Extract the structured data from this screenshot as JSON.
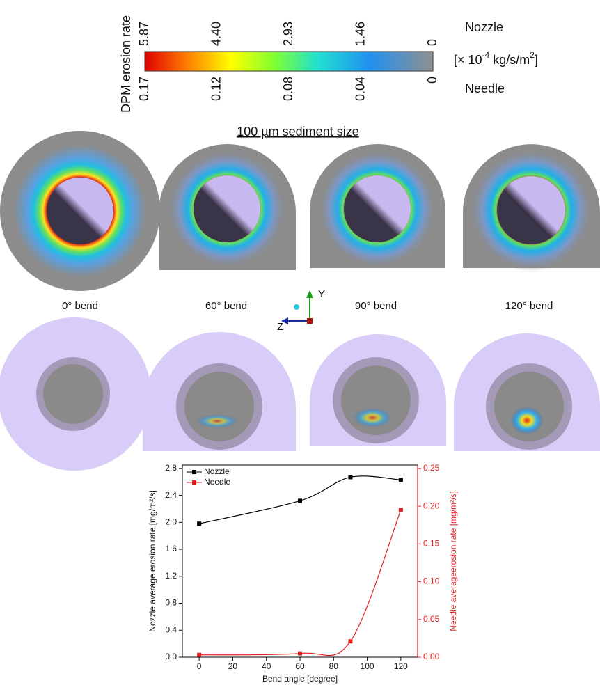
{
  "colorbar": {
    "title": "DPM erosion rate",
    "nozzle_label": "Nozzle",
    "needle_label": "Needle",
    "unit": [
      "[× 10",
      "-4",
      " kg/s/m",
      "2",
      "]"
    ],
    "nozzle_ticks": [
      5.87,
      {
        "value": 4.4,
        "label": "4.40"
      },
      2.93,
      1.46,
      0
    ],
    "needle_ticks": [
      0.17,
      0.12,
      0.08,
      0.04,
      0
    ]
  },
  "panels": {
    "sediment_title": "100 µm sediment size",
    "bend_labels": [
      "0° bend",
      "60° bend",
      "90° bend",
      "120° bend"
    ],
    "axis_labels": [
      "Y",
      "Z"
    ]
  },
  "chart_data": {
    "type": "line",
    "x": [
      0,
      60,
      90,
      120
    ],
    "xlabel": "Bend angle [degree]",
    "ylabel": "Nozzle average erosion rate [mg/m²/s]",
    "y2label": "Needle averageerosion rate [mg/m²/s]",
    "xlim": [
      -10,
      130
    ],
    "xticks": [
      0,
      20,
      40,
      60,
      80,
      100,
      120
    ],
    "ylim": [
      0,
      2.85
    ],
    "yticks": [
      {
        "value": 0,
        "label": "0.0"
      },
      {
        "value": 0.4,
        "label": "0.4"
      },
      {
        "value": 0.8,
        "label": "0.8"
      },
      {
        "value": 1.2,
        "label": "1.2"
      },
      {
        "value": 1.6,
        "label": "1.6"
      },
      {
        "value": 2.0,
        "label": "2.0"
      },
      {
        "value": 2.4,
        "label": "2.4"
      },
      {
        "value": 2.8,
        "label": "2.8"
      }
    ],
    "y2lim": [
      0,
      0.2545
    ],
    "y2ticks": [
      {
        "value": 0,
        "label": "0.00"
      },
      {
        "value": 0.05,
        "label": "0.05"
      },
      {
        "value": 0.1,
        "label": "0.10"
      },
      {
        "value": 0.15,
        "label": "0.15"
      },
      {
        "value": 0.2,
        "label": "0.20"
      },
      {
        "value": 0.25,
        "label": "0.25"
      }
    ],
    "legend": "upper left",
    "series": [
      {
        "name": "Nozzle",
        "color": "#000000",
        "values": [
          1.98,
          2.32,
          2.67,
          2.63
        ]
      },
      {
        "name": "Needle",
        "color": "#e02020",
        "axis": "y2",
        "values": [
          0.003,
          0.005,
          0.021,
          0.195
        ]
      }
    ]
  }
}
